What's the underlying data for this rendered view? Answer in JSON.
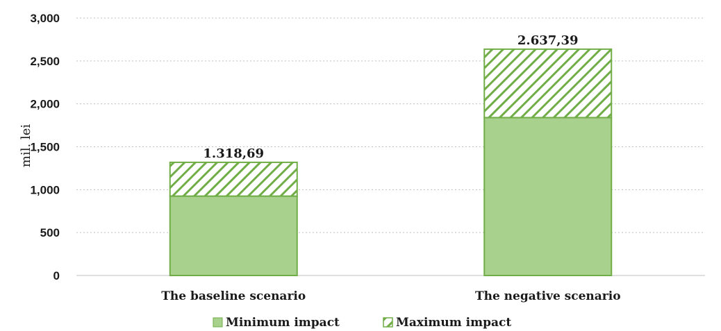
{
  "chart_data": {
    "type": "bar",
    "stacked": true,
    "categories": [
      "The baseline scenario",
      "The negative scenario"
    ],
    "series": [
      {
        "name": "Minimum impact",
        "values": [
          925,
          1840
        ],
        "fill": "solid",
        "color": "#a9d18e"
      },
      {
        "name": "Maximum impact",
        "values": [
          393.69,
          797.39
        ],
        "fill": "hatched",
        "color": "#70ad47"
      }
    ],
    "totals": [
      1318.69,
      2637.39
    ],
    "total_labels": [
      "1.318,69",
      "2.637,39"
    ],
    "ylabel": "mil. lei",
    "ylim": [
      0,
      3000
    ],
    "yticks": [
      0,
      500,
      1000,
      1500,
      2000,
      2500,
      3000
    ],
    "ytick_labels": [
      "0",
      "500",
      "1,000",
      "1,500",
      "2,000",
      "2,500",
      "3,000"
    ],
    "grid": true,
    "legend_position": "bottom"
  }
}
